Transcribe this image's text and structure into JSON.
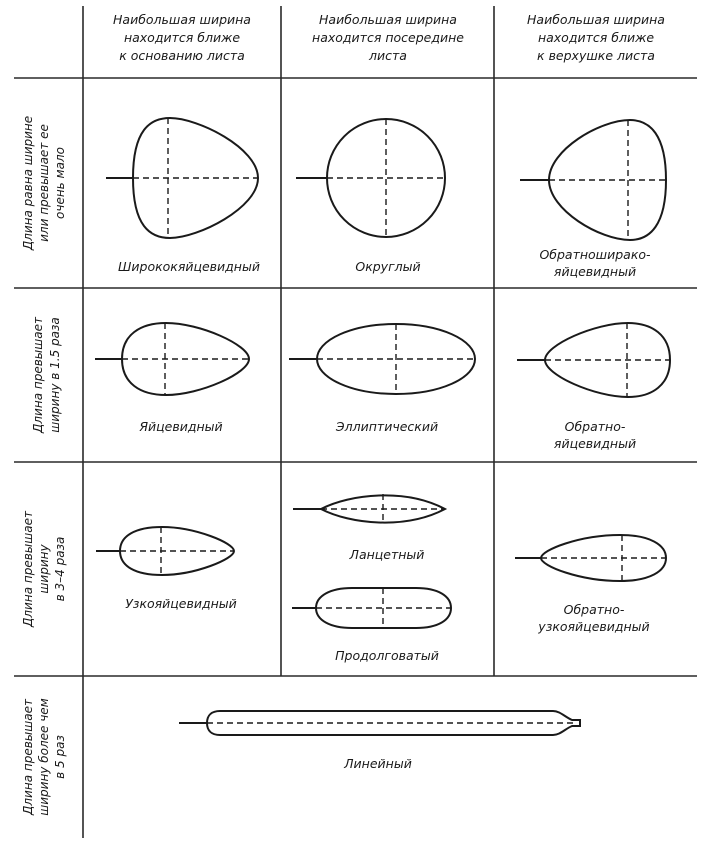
{
  "columns": [
    {
      "line1": "Наибольшая ширина",
      "line2": "находится ближе",
      "line3": "к основанию листа"
    },
    {
      "line1": "Наибольшая ширина",
      "line2": "находится посередине",
      "line3": "листа"
    },
    {
      "line1": "Наибольшая ширина",
      "line2": "находится ближе",
      "line3": "к верхушке листа"
    }
  ],
  "rows": [
    {
      "line1": "Длина равна ширине",
      "line2": "или превышает ее",
      "line3": "очень мало"
    },
    {
      "line1": "Длина превышает",
      "line2": "ширину в 1.5 раза"
    },
    {
      "line1": "Длина превышает",
      "line2": "ширину",
      "line3": "в 3–4 раза"
    },
    {
      "line1": "Длина превышает",
      "line2": "ширину более чем",
      "line3": "в 5 раз"
    }
  ],
  "shapes": {
    "broad_ovate": {
      "line1": "Ширококяйцевидный"
    },
    "orbicular": {
      "line1": "Округлый"
    },
    "obovate_broad": {
      "line1": "Обратноширако-",
      "line2": "яйцевидный"
    },
    "ovate": {
      "line1": "Яйцевидный"
    },
    "elliptic": {
      "line1": "Эллиптический"
    },
    "obovate": {
      "line1": "Обратно-",
      "line2": "яйцевидный"
    },
    "narrow_ovate": {
      "line1": "Узкояйцевидный"
    },
    "lanceolate": {
      "line1": "Ланцетный"
    },
    "oblong": {
      "line1": "Продолговатый"
    },
    "narrow_obovate": {
      "line1": "Обратно-",
      "line2": "узкояйцевидный"
    },
    "linear": {
      "line1": "Линейный"
    }
  }
}
